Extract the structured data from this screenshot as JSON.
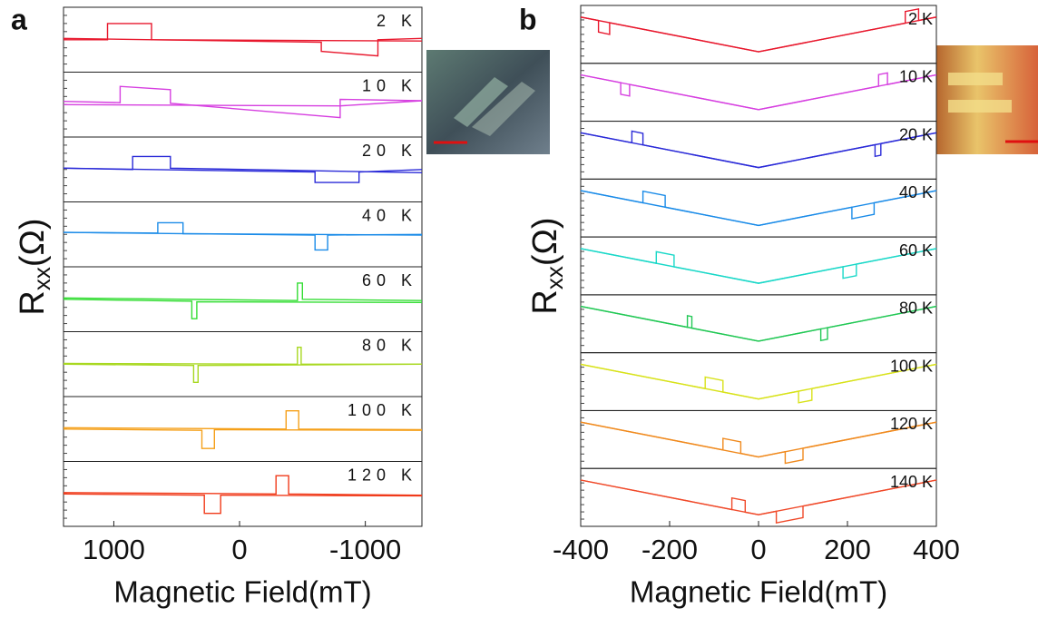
{
  "chart_data": [
    {
      "type": "line",
      "panel_label": "a",
      "xlabel": "Magnetic Field(mT)",
      "ylabel": "R",
      "ylabel_sub": "xx",
      "ylabel_unit": "(Ω)",
      "xlim": [
        1400,
        -1450
      ],
      "xticks": [
        1000,
        0,
        -1000
      ],
      "ylim": [
        0,
        10
      ],
      "panels": [
        {
          "label": "2 K",
          "color": "#e8182d",
          "traces": [
            {
              "x": [
                1400,
                1050,
                1050,
                700,
                700,
                -1450
              ],
              "y": [
                5,
                5,
                7.5,
                7.5,
                5,
                4.8
              ]
            },
            {
              "x": [
                1400,
                -650,
                -650,
                -1100,
                -1100,
                -1450
              ],
              "y": [
                5.2,
                4.6,
                3.2,
                2.5,
                5,
                5.2
              ]
            }
          ]
        },
        {
          "label": "10 K",
          "color": "#d63fe0",
          "traces": [
            {
              "x": [
                1400,
                950,
                950,
                550,
                550,
                -800,
                -800,
                -1450
              ],
              "y": [
                5.5,
                5.3,
                7.8,
                7.3,
                5.2,
                3,
                5.8,
                5.6
              ]
            },
            {
              "x": [
                1400,
                -800,
                -1450
              ],
              "y": [
                5,
                4.8,
                5.6
              ]
            }
          ]
        },
        {
          "label": "20 K",
          "color": "#2a2ad8",
          "traces": [
            {
              "x": [
                1400,
                850,
                850,
                550,
                550,
                -1450
              ],
              "y": [
                5.2,
                5,
                7,
                7,
                5.2,
                4.5
              ]
            },
            {
              "x": [
                1400,
                -600,
                -600,
                -950,
                -950,
                -1450
              ],
              "y": [
                5.2,
                4.6,
                3,
                3,
                4.6,
                5
              ]
            }
          ]
        },
        {
          "label": "40 K",
          "color": "#1a8be8",
          "traces": [
            {
              "x": [
                1400,
                650,
                650,
                450,
                450,
                -1450
              ],
              "y": [
                5.3,
                5.2,
                6.8,
                6.8,
                5.1,
                4.9
              ]
            },
            {
              "x": [
                1400,
                -600,
                -600,
                -700,
                -700,
                -1450
              ],
              "y": [
                5.3,
                4.9,
                2.6,
                2.6,
                4.9,
                5
              ]
            }
          ]
        },
        {
          "label": "60 K",
          "color": "#33dd33",
          "traces": [
            {
              "x": [
                1400,
                380,
                380,
                340,
                340,
                -1450
              ],
              "y": [
                5,
                4.7,
                2,
                2,
                4.6,
                4.5
              ]
            },
            {
              "x": [
                1400,
                -460,
                -460,
                -500,
                -500,
                -1450
              ],
              "y": [
                5.2,
                4.8,
                7.5,
                7.5,
                5,
                4.8
              ]
            }
          ]
        },
        {
          "label": "80 K",
          "color": "#a8d820",
          "traces": [
            {
              "x": [
                1400,
                365,
                365,
                330,
                330,
                -1450
              ],
              "y": [
                5,
                4.8,
                2.2,
                2.2,
                4.8,
                5
              ]
            },
            {
              "x": [
                1400,
                -460,
                -460,
                -490,
                -490,
                -1450
              ],
              "y": [
                5.1,
                5,
                7.6,
                7.6,
                5,
                5
              ]
            }
          ]
        },
        {
          "label": "100 K",
          "color": "#f5a01a",
          "traces": [
            {
              "x": [
                1400,
                300,
                300,
                200,
                200,
                -1450
              ],
              "y": [
                5,
                4.8,
                2,
                2,
                4.9,
                4.8
              ]
            },
            {
              "x": [
                1400,
                -370,
                -370,
                -470,
                -470,
                -1450
              ],
              "y": [
                5.2,
                5,
                7.8,
                7.8,
                5,
                4.9
              ]
            }
          ]
        },
        {
          "label": "120 K",
          "color": "#f03a1a",
          "traces": [
            {
              "x": [
                1400,
                280,
                280,
                150,
                150,
                -1450
              ],
              "y": [
                5,
                4.8,
                2,
                2,
                4.8,
                4.7
              ]
            },
            {
              "x": [
                1400,
                -290,
                -290,
                -390,
                -390,
                -1450
              ],
              "y": [
                5.2,
                5,
                7.8,
                7.8,
                5,
                4.8
              ]
            }
          ]
        }
      ]
    },
    {
      "type": "line",
      "panel_label": "b",
      "xlabel": "Magnetic Field(mT)",
      "ylabel": "R",
      "ylabel_sub": "xx",
      "ylabel_unit": "(Ω)",
      "xlim": [
        -400,
        400
      ],
      "xticks": [
        -400,
        -200,
        0,
        200,
        400
      ],
      "ylim": [
        0,
        10
      ],
      "panels": [
        {
          "label": "2 K",
          "color": "#e8182d",
          "traces": [
            {
              "x": [
                -400,
                -360,
                -360,
                -335,
                -335,
                0,
                400
              ],
              "y": [
                8,
                7.4,
                5.4,
                5,
                7,
                2,
                8
              ]
            },
            {
              "x": [
                -400,
                0,
                330,
                330,
                360,
                360,
                400
              ],
              "y": [
                8,
                2,
                6.95,
                8.95,
                9.4,
                7.4,
                8
              ]
            }
          ]
        },
        {
          "label": "10 K",
          "color": "#d63fe0",
          "traces": [
            {
              "x": [
                -400,
                -310,
                -310,
                -290,
                -290,
                0,
                400
              ],
              "y": [
                8,
                6.65,
                4.65,
                4.35,
                6.35,
                2,
                8
              ]
            },
            {
              "x": [
                -400,
                0,
                270,
                270,
                290,
                290,
                400
              ],
              "y": [
                8,
                2,
                6.05,
                8.05,
                8.35,
                6.35,
                8
              ]
            }
          ]
        },
        {
          "label": "20 K",
          "color": "#2a2ad8",
          "traces": [
            {
              "x": [
                -400,
                -285,
                -285,
                -260,
                -260,
                0,
                400
              ],
              "y": [
                8,
                6.28,
                8.28,
                7.9,
                5.9,
                2,
                8
              ]
            },
            {
              "x": [
                -400,
                0,
                262,
                262,
                275,
                275,
                400
              ],
              "y": [
                8,
                2,
                5.93,
                3.93,
                4.13,
                6.13,
                8
              ]
            }
          ]
        },
        {
          "label": "40 K",
          "color": "#1a8be8",
          "traces": [
            {
              "x": [
                -400,
                -260,
                -260,
                -210,
                -210,
                0,
                400
              ],
              "y": [
                8,
                5.9,
                7.9,
                7.15,
                5.15,
                2,
                8
              ]
            },
            {
              "x": [
                -400,
                0,
                210,
                210,
                260,
                260,
                400
              ],
              "y": [
                8,
                2,
                5.15,
                3.15,
                3.9,
                5.9,
                8
              ]
            }
          ]
        },
        {
          "label": "60 K",
          "color": "#1ad8c8",
          "traces": [
            {
              "x": [
                -400,
                -230,
                -230,
                -190,
                -190,
                0,
                400
              ],
              "y": [
                8,
                5.45,
                7.45,
                6.85,
                4.85,
                2,
                8
              ]
            },
            {
              "x": [
                -400,
                0,
                190,
                190,
                220,
                220,
                400
              ],
              "y": [
                8,
                2,
                4.85,
                2.85,
                3.3,
                5.3,
                8
              ]
            }
          ]
        },
        {
          "label": "80 K",
          "color": "#22c855",
          "traces": [
            {
              "x": [
                -400,
                -160,
                -160,
                -150,
                -150,
                0,
                400
              ],
              "y": [
                8,
                4.4,
                6.4,
                6.25,
                4.25,
                2,
                8
              ]
            },
            {
              "x": [
                -400,
                0,
                140,
                140,
                155,
                155,
                400
              ],
              "y": [
                8,
                2,
                4.1,
                2.1,
                2.33,
                4.33,
                8
              ]
            }
          ]
        },
        {
          "label": "100 K",
          "color": "#d8e21a",
          "traces": [
            {
              "x": [
                -400,
                -120,
                -120,
                -80,
                -80,
                0,
                400
              ],
              "y": [
                8,
                3.8,
                5.8,
                5.2,
                3.2,
                2,
                8
              ]
            },
            {
              "x": [
                -400,
                0,
                90,
                90,
                120,
                120,
                400
              ],
              "y": [
                8,
                2,
                3.35,
                1.35,
                1.8,
                3.8,
                8
              ]
            }
          ]
        },
        {
          "label": "120 K",
          "color": "#f08a1e",
          "traces": [
            {
              "x": [
                -400,
                -80,
                -80,
                -40,
                -40,
                0,
                400
              ],
              "y": [
                8,
                3.2,
                5.2,
                4.6,
                2.6,
                2,
                8
              ]
            },
            {
              "x": [
                -400,
                0,
                60,
                60,
                100,
                100,
                400
              ],
              "y": [
                8,
                2,
                2.9,
                0.9,
                1.5,
                3.5,
                8
              ]
            }
          ]
        },
        {
          "label": "140 K",
          "color": "#f04a2a",
          "traces": [
            {
              "x": [
                -400,
                -60,
                -60,
                -30,
                -30,
                0,
                400
              ],
              "y": [
                8,
                2.9,
                4.9,
                4.45,
                2.45,
                2,
                8
              ]
            },
            {
              "x": [
                -400,
                0,
                40,
                40,
                100,
                100,
                400
              ],
              "y": [
                8,
                2,
                2.6,
                0.6,
                1.5,
                3.5,
                8
              ]
            }
          ]
        }
      ]
    }
  ]
}
